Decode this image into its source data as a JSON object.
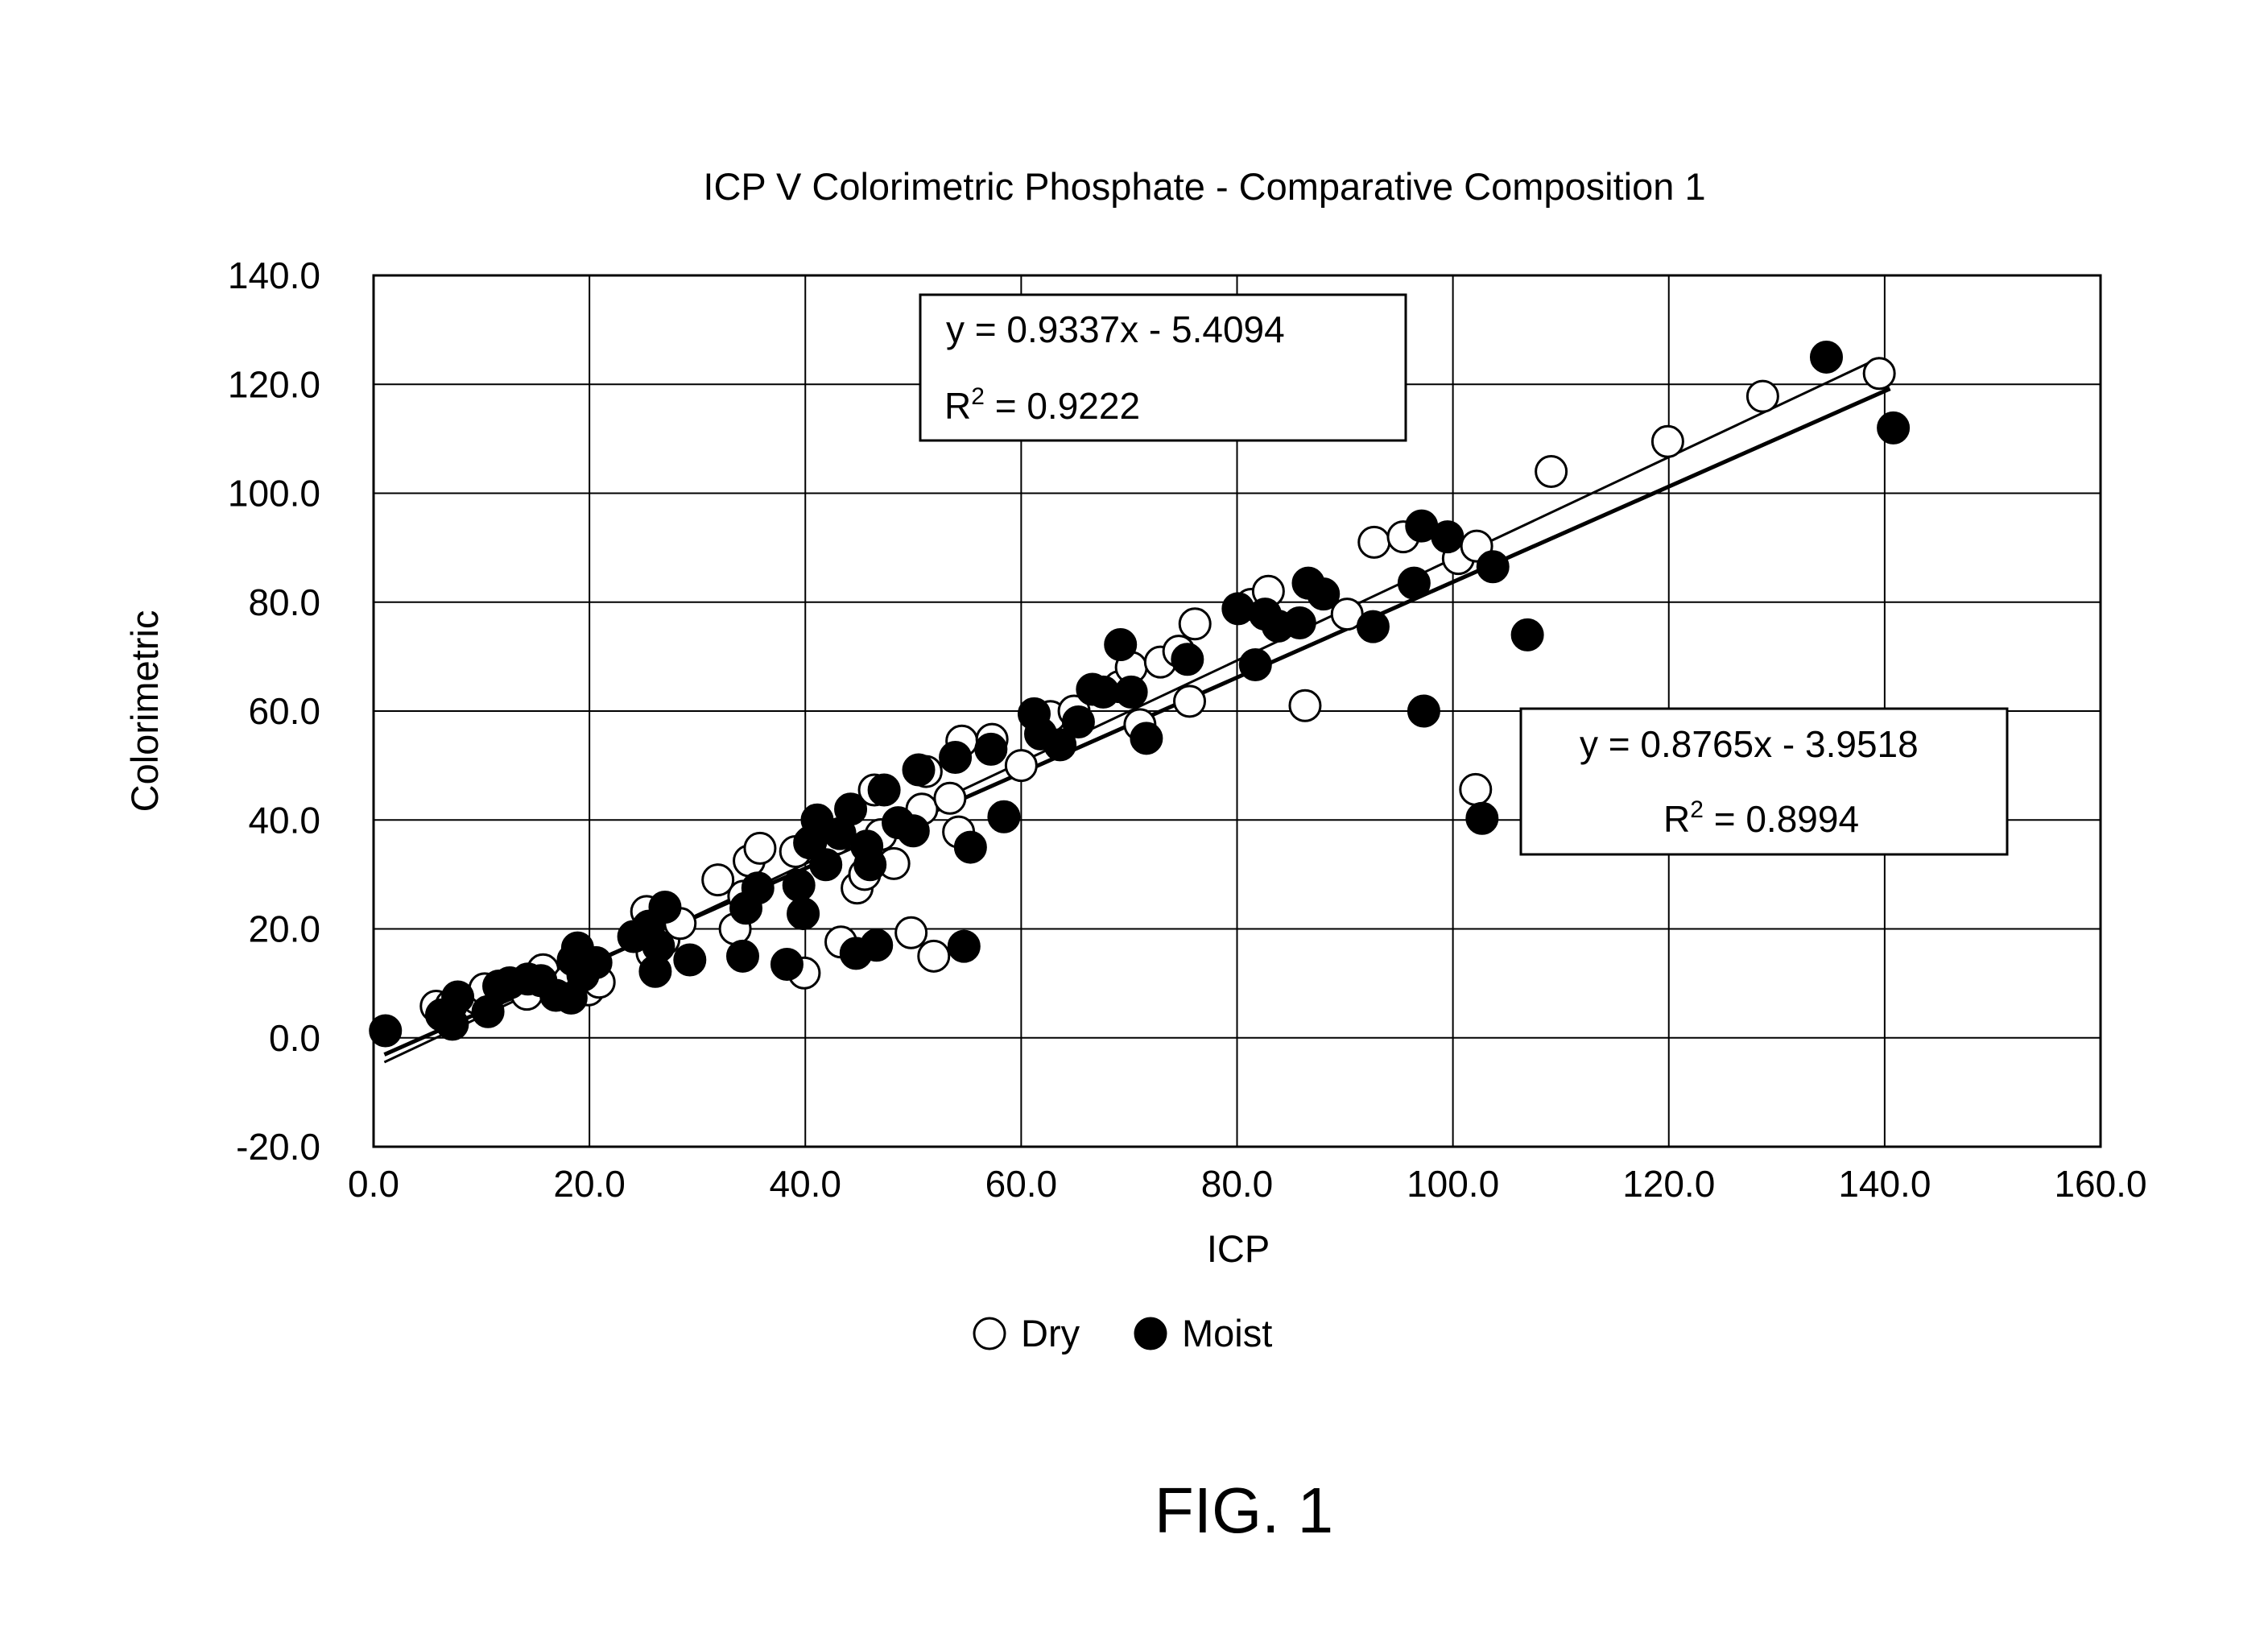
{
  "figure_label": "FIG. 1",
  "chart_data": {
    "type": "scatter",
    "title": "ICP V Colorimetric Phosphate - Comparative Composition 1",
    "xlabel": "ICP",
    "ylabel": "Colorimetric",
    "xlim": [
      0,
      160
    ],
    "ylim": [
      -20,
      140
    ],
    "xticks": [
      "0.0",
      "20.0",
      "40.0",
      "60.0",
      "80.0",
      "100.0",
      "120.0",
      "140.0",
      "160.0"
    ],
    "yticks": [
      "140.0",
      "120.0",
      "100.0",
      "80.0",
      "60.0",
      "40.0",
      "20.0",
      "0.0",
      "-20.0"
    ],
    "grid": true,
    "legend_position": "bottom-center",
    "series": [
      {
        "name": "Dry",
        "marker": "open-circle",
        "color": "#ffffff",
        "stroke": "#000000",
        "trendline": {
          "slope": 0.9337,
          "intercept": -5.4094,
          "x_range": [
            1,
            139.5
          ]
        },
        "equation_label": "y = 0.9337x - 5.4094",
        "r2_prefix": "R",
        "r2_sup": "2",
        "r2_value": " = 0.9222",
        "points": [
          [
            5.8,
            5.8
          ],
          [
            7.2,
            6.0
          ],
          [
            9.6,
            7.2
          ],
          [
            10.3,
            9.0
          ],
          [
            12.5,
            9.8
          ],
          [
            14.2,
            8.0
          ],
          [
            15.7,
            12.5
          ],
          [
            18.1,
            10.5
          ],
          [
            19.9,
            8.8
          ],
          [
            20.9,
            10.2
          ],
          [
            25.3,
            23.2
          ],
          [
            25.8,
            15.6
          ],
          [
            26.9,
            18.0
          ],
          [
            28.4,
            21.0
          ],
          [
            31.9,
            29.0
          ],
          [
            33.5,
            20.0
          ],
          [
            34.3,
            26.0
          ],
          [
            34.8,
            32.5
          ],
          [
            35.8,
            34.8
          ],
          [
            39.1,
            34.2
          ],
          [
            39.9,
            11.9
          ],
          [
            40.4,
            35.8
          ],
          [
            42.8,
            36.5
          ],
          [
            43.3,
            17.6
          ],
          [
            44.8,
            27.5
          ],
          [
            45.5,
            30.0
          ],
          [
            46.4,
            45.5
          ],
          [
            47.0,
            37.3
          ],
          [
            48.2,
            32.0
          ],
          [
            50.8,
            42.0
          ],
          [
            51.2,
            48.9
          ],
          [
            49.8,
            19.3
          ],
          [
            51.9,
            15.0
          ],
          [
            53.4,
            44.0
          ],
          [
            54.2,
            37.8
          ],
          [
            54.5,
            54.5
          ],
          [
            57.3,
            54.8
          ],
          [
            60.0,
            50.0
          ],
          [
            62.7,
            59.0
          ],
          [
            64.9,
            60.0
          ],
          [
            69.1,
            64.5
          ],
          [
            70.2,
            68.0
          ],
          [
            71.0,
            57.5
          ],
          [
            72.9,
            69.0
          ],
          [
            74.6,
            71.0
          ],
          [
            76.1,
            76.0
          ],
          [
            75.6,
            61.8
          ],
          [
            81.3,
            79.6
          ],
          [
            82.9,
            82.0
          ],
          [
            86.3,
            61.0
          ],
          [
            90.2,
            77.8
          ],
          [
            92.7,
            91.0
          ],
          [
            95.4,
            92.0
          ],
          [
            100.5,
            88.0
          ],
          [
            102.2,
            90.3
          ],
          [
            102.1,
            45.6
          ],
          [
            109.1,
            104.0
          ],
          [
            119.9,
            109.5
          ],
          [
            128.7,
            117.8
          ],
          [
            139.5,
            122.0
          ]
        ]
      },
      {
        "name": "Moist",
        "marker": "filled-circle",
        "color": "#000000",
        "stroke": "#000000",
        "trendline": {
          "slope": 0.8765,
          "intercept": -3.9518,
          "x_range": [
            1,
            140.5
          ]
        },
        "equation_label": "y = 0.8765x - 3.9518",
        "r2_prefix": "R",
        "r2_sup": "2",
        "r2_value": " = 0.8994",
        "points": [
          [
            1.1,
            1.3
          ],
          [
            6.3,
            4.2
          ],
          [
            7.3,
            2.5
          ],
          [
            7.8,
            7.5
          ],
          [
            10.6,
            4.8
          ],
          [
            11.6,
            9.5
          ],
          [
            12.6,
            10.1
          ],
          [
            14.3,
            10.8
          ],
          [
            15.5,
            10.5
          ],
          [
            16.9,
            7.8
          ],
          [
            18.3,
            7.3
          ],
          [
            18.5,
            14.3
          ],
          [
            18.9,
            16.5
          ],
          [
            19.4,
            11.5
          ],
          [
            20.6,
            13.8
          ],
          [
            24.1,
            18.6
          ],
          [
            25.5,
            20.5
          ],
          [
            26.1,
            12.2
          ],
          [
            26.4,
            16.8
          ],
          [
            27.0,
            24.0
          ],
          [
            29.3,
            14.3
          ],
          [
            34.2,
            15.0
          ],
          [
            34.5,
            23.8
          ],
          [
            35.6,
            27.5
          ],
          [
            38.3,
            13.5
          ],
          [
            39.4,
            28.0
          ],
          [
            39.8,
            22.8
          ],
          [
            40.5,
            36.0
          ],
          [
            41.1,
            40.0
          ],
          [
            41.9,
            31.8
          ],
          [
            43.2,
            37.5
          ],
          [
            44.2,
            42.0
          ],
          [
            44.7,
            15.5
          ],
          [
            45.7,
            35.2
          ],
          [
            46.0,
            31.8
          ],
          [
            46.6,
            17.0
          ],
          [
            47.3,
            45.5
          ],
          [
            48.6,
            39.5
          ],
          [
            50.0,
            38.0
          ],
          [
            50.5,
            49.2
          ],
          [
            53.9,
            51.5
          ],
          [
            54.7,
            16.8
          ],
          [
            55.3,
            35.0
          ],
          [
            57.2,
            53.0
          ],
          [
            58.4,
            40.6
          ],
          [
            61.2,
            59.5
          ],
          [
            61.8,
            55.8
          ],
          [
            63.6,
            53.8
          ],
          [
            65.3,
            58.0
          ],
          [
            66.6,
            64.0
          ],
          [
            67.6,
            63.5
          ],
          [
            69.2,
            72.2
          ],
          [
            70.2,
            63.5
          ],
          [
            71.6,
            55.0
          ],
          [
            75.4,
            69.5
          ],
          [
            80.1,
            78.8
          ],
          [
            81.7,
            68.5
          ],
          [
            82.6,
            77.8
          ],
          [
            83.8,
            75.6
          ],
          [
            85.8,
            76.2
          ],
          [
            86.6,
            83.5
          ],
          [
            88.0,
            81.5
          ],
          [
            92.6,
            75.5
          ],
          [
            96.4,
            83.5
          ],
          [
            97.1,
            94.0
          ],
          [
            97.3,
            60.0
          ],
          [
            99.5,
            92.0
          ],
          [
            102.7,
            40.3
          ],
          [
            103.7,
            86.5
          ],
          [
            106.9,
            74.0
          ],
          [
            134.6,
            125.0
          ],
          [
            140.8,
            112.0
          ]
        ]
      }
    ]
  }
}
